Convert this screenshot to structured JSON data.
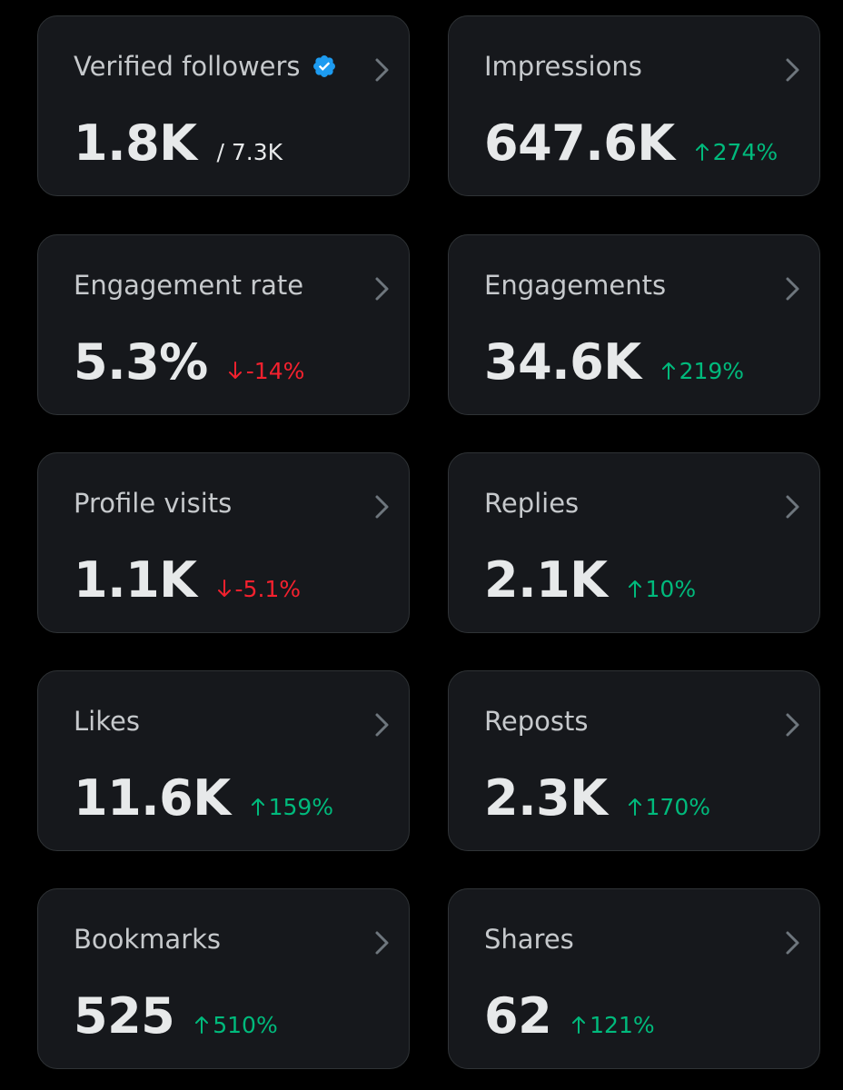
{
  "colors": {
    "background": "#000000",
    "card": "#16181c",
    "card_border": "#2f3336",
    "title_text": "#c6c9cc",
    "value_text": "#e7e9ea",
    "positive": "#00ba7c",
    "negative": "#f4212e",
    "verified_badge": "#1d9bf0"
  },
  "cards": [
    {
      "title": "Verified followers",
      "value": "1.8K",
      "sub": "/ 7.3K",
      "verified_icon": "verified-badge-icon"
    },
    {
      "title": "Impressions",
      "value": "647.6K",
      "change": "274%",
      "direction": "up"
    },
    {
      "title": "Engagement rate",
      "value": "5.3%",
      "change": "-14%",
      "direction": "down"
    },
    {
      "title": "Engagements",
      "value": "34.6K",
      "change": "219%",
      "direction": "up"
    },
    {
      "title": "Profile visits",
      "value": "1.1K",
      "change": "-5.1%",
      "direction": "down"
    },
    {
      "title": "Replies",
      "value": "2.1K",
      "change": "10%",
      "direction": "up"
    },
    {
      "title": "Likes",
      "value": "11.6K",
      "change": "159%",
      "direction": "up"
    },
    {
      "title": "Reposts",
      "value": "2.3K",
      "change": "170%",
      "direction": "up"
    },
    {
      "title": "Bookmarks",
      "value": "525",
      "change": "510%",
      "direction": "up"
    },
    {
      "title": "Shares",
      "value": "62",
      "change": "121%",
      "direction": "up"
    }
  ]
}
